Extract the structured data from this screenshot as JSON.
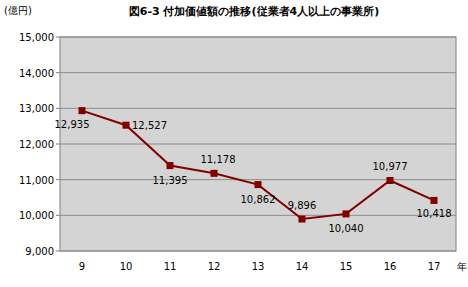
{
  "chart_data": {
    "type": "line",
    "title": "図6-3 付加価値額の推移(従業者4人以上の事業所)",
    "ylabel": "(億円)",
    "xlabel": "年",
    "categories": [
      "9",
      "10",
      "11",
      "12",
      "13",
      "14",
      "15",
      "16",
      "17"
    ],
    "values": [
      12935,
      12527,
      11395,
      11178,
      10862,
      9896,
      10040,
      10977,
      10418
    ],
    "value_labels": [
      "12,935",
      "12,527",
      "11,395",
      "11,178",
      "10,862",
      "9,896",
      "10,040",
      "10,977",
      "10,418"
    ],
    "color": "#800000",
    "marker": "square",
    "data_labels": true,
    "grid": true,
    "ylim": [
      9000,
      15000
    ],
    "yticks": [
      {
        "value": 9000,
        "label": "9,000"
      },
      {
        "value": 10000,
        "label": "10,000"
      },
      {
        "value": 11000,
        "label": "11,000"
      },
      {
        "value": 12000,
        "label": "12,000"
      },
      {
        "value": 13000,
        "label": "13,000"
      },
      {
        "value": 14000,
        "label": "14,000"
      },
      {
        "value": 15000,
        "label": "15,000"
      }
    ]
  }
}
